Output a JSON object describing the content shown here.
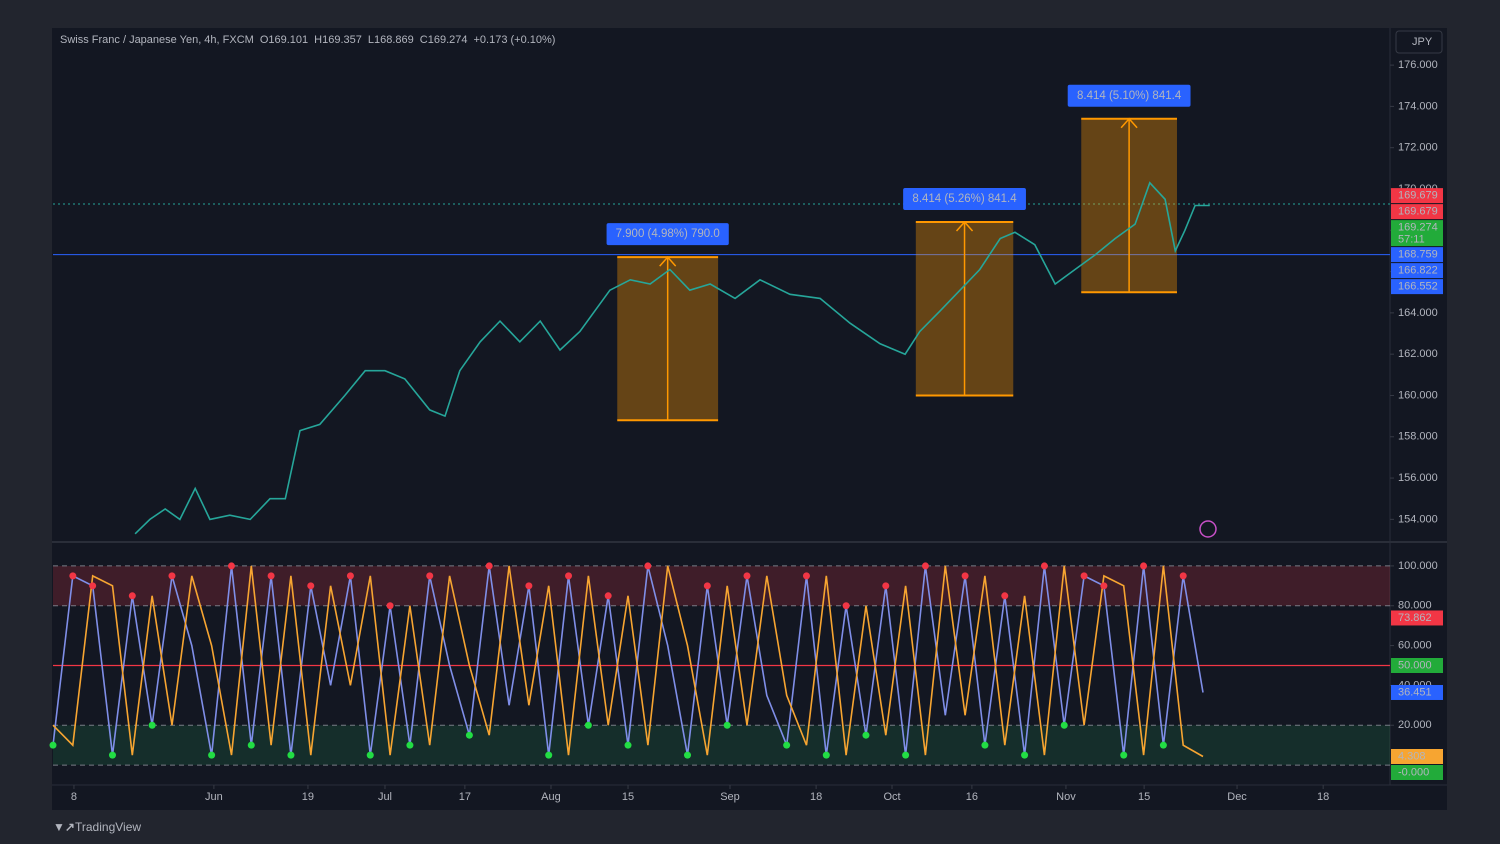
{
  "header": {
    "symbol": "Swiss Franc / Japanese Yen, 4h, FXCM",
    "open": "O169.101",
    "high": "H169.357",
    "low": "L168.869",
    "close": "C169.274",
    "change": "+0.173 (+0.10%)"
  },
  "currency": "JPY",
  "brand": "TradingView",
  "chart_data": [
    {
      "type": "line",
      "xlim": [
        4,
        240
      ],
      "ylim": [
        153,
        177.7
      ],
      "xticks": [
        {
          "value": 7.7,
          "label": "8"
        },
        {
          "value": 32.4,
          "label": "Jun"
        },
        {
          "value": 49,
          "label": "19"
        },
        {
          "value": 62.6,
          "label": "Jul"
        },
        {
          "value": 76.7,
          "label": "17"
        },
        {
          "value": 91.9,
          "label": "Aug"
        },
        {
          "value": 105.5,
          "label": "15"
        },
        {
          "value": 123.5,
          "label": "Sep"
        },
        {
          "value": 138.7,
          "label": "18"
        },
        {
          "value": 152.1,
          "label": "Oct"
        },
        {
          "value": 166.2,
          "label": "16"
        },
        {
          "value": 182.8,
          "label": "Nov"
        },
        {
          "value": 196.6,
          "label": "15"
        },
        {
          "value": 213,
          "label": "Dec"
        },
        {
          "value": 228.2,
          "label": "18"
        }
      ],
      "yticks": [
        {
          "value": 154,
          "label": "154.000"
        },
        {
          "value": 156,
          "label": "156.000"
        },
        {
          "value": 158,
          "label": "158.000"
        },
        {
          "value": 160,
          "label": "160.000"
        },
        {
          "value": 162,
          "label": "162.000"
        },
        {
          "value": 164,
          "label": "164.000"
        },
        {
          "value": 166,
          "label": "166.000"
        },
        {
          "value": 168,
          "label": "168.000"
        },
        {
          "value": 170,
          "label": "170.000"
        },
        {
          "value": 172,
          "label": "172.000"
        },
        {
          "value": 174,
          "label": "174.000"
        },
        {
          "value": 176,
          "label": "176.000"
        }
      ],
      "x": [
        18.5,
        21.1,
        23.8,
        26.4,
        29.1,
        31.7,
        35.2,
        38.8,
        42.3,
        45,
        47.6,
        51.1,
        55.5,
        59.1,
        62.6,
        66.1,
        70.5,
        73.2,
        75.8,
        79.4,
        82.9,
        86.4,
        90,
        93.5,
        97,
        102.3,
        105.9,
        109.4,
        112.9,
        116.4,
        120,
        124.4,
        128.8,
        134.1,
        139.4,
        144.7,
        150,
        154.4,
        157,
        160.6,
        164.1,
        167.6,
        171.2,
        173.8,
        177.3,
        180.9,
        184.4,
        187.9,
        191.5,
        195,
        197.6,
        200.3,
        202.1,
        203.8,
        205.6,
        208.2
      ],
      "series": [
        {
          "color": "#26a69a",
          "values": [
            153.3,
            154,
            154.5,
            154,
            155.5,
            154,
            154.2,
            154,
            155,
            155,
            158.3,
            158.6,
            160,
            161.2,
            161.2,
            160.8,
            159.3,
            159,
            161.2,
            162.6,
            163.6,
            162.6,
            163.6,
            162.2,
            163.1,
            165.1,
            165.6,
            165.4,
            166.1,
            165.1,
            165.4,
            164.7,
            165.6,
            164.9,
            164.7,
            163.5,
            162.5,
            162,
            163.1,
            164.1,
            165.1,
            166.1,
            167.6,
            167.9,
            167.3,
            165.4,
            166.1,
            166.8,
            167.6,
            168.3,
            170.3,
            169.5,
            167,
            168,
            169.2,
            169.2
          ]
        }
      ],
      "measures": [
        {
          "label": "7.900 (4.98%) 790.0",
          "x": [
            103.6,
            121.4
          ],
          "y": [
            158.8,
            166.7
          ]
        },
        {
          "label": "8.414 (5.26%) 841.4",
          "x": [
            156.3,
            173.5
          ],
          "y": [
            160,
            168.4
          ]
        },
        {
          "label": "8.414 (5.10%) 841.4",
          "x": [
            185.5,
            202.4
          ],
          "y": [
            165,
            173.4
          ]
        }
      ],
      "hlines": [
        {
          "value": 166.822,
          "color": "#2962ff",
          "dashed": false
        },
        {
          "value": 169.274,
          "color": "#26a69a",
          "dashed": true
        }
      ],
      "price_labels": [
        {
          "value": 169.679,
          "color": "#f23645"
        },
        {
          "value": 169.679,
          "color": "#f23645"
        },
        {
          "value": 169.274,
          "sub": "57:11",
          "color": "#22ab3a"
        },
        {
          "value": 168.759,
          "color": "#2962ff"
        },
        {
          "value": 166.822,
          "color": "#2962ff"
        },
        {
          "value": 166.552,
          "color": "#2962ff"
        }
      ]
    },
    {
      "type": "line",
      "xlim": [
        4,
        240
      ],
      "ylim": [
        -10,
        110.5
      ],
      "yticks": [
        {
          "value": 100,
          "label": "100.000"
        },
        {
          "value": 80,
          "label": "80.000"
        },
        {
          "value": 60,
          "label": "60.000"
        },
        {
          "value": 40,
          "label": "40.000"
        },
        {
          "value": 20,
          "label": "20.000"
        }
      ],
      "zones": [
        {
          "range": [
            80,
            100
          ],
          "color": "rgba(242,54,69,0.2)"
        },
        {
          "range": [
            0,
            20
          ],
          "color": "rgba(38,166,91,0.16)"
        }
      ],
      "midline": 50,
      "x": [
        4,
        7.5,
        11,
        14.5,
        18,
        21.5,
        25,
        28.5,
        32,
        35.5,
        39,
        42.5,
        46,
        49.5,
        53,
        56.5,
        60,
        63.5,
        67,
        70.5,
        74,
        77.5,
        81,
        84.5,
        88,
        91.5,
        95,
        98.5,
        102,
        105.5,
        109,
        112.5,
        116,
        119.5,
        123,
        126.5,
        130,
        133.5,
        137,
        140.5,
        144,
        147.5,
        151,
        154.5,
        158,
        161.5,
        165,
        168.5,
        172,
        175.5,
        179,
        182.5,
        186,
        189.5,
        193,
        196.5,
        200,
        203.5,
        207
      ],
      "series": [
        {
          "color": "#7f8ee8",
          "values": [
            10,
            95,
            90,
            5,
            85,
            20,
            95,
            60,
            5,
            100,
            10,
            95,
            5,
            90,
            40,
            95,
            5,
            80,
            10,
            95,
            50,
            15,
            100,
            30,
            90,
            5,
            95,
            20,
            85,
            10,
            100,
            60,
            5,
            90,
            20,
            95,
            35,
            10,
            95,
            5,
            80,
            15,
            90,
            5,
            100,
            25,
            95,
            10,
            85,
            5,
            100,
            20,
            95,
            90,
            5,
            100,
            10,
            95,
            36.451
          ]
        },
        {
          "color": "#f7a531",
          "values": [
            20,
            10,
            95,
            90,
            5,
            85,
            20,
            95,
            60,
            5,
            100,
            10,
            95,
            5,
            90,
            40,
            95,
            5,
            80,
            10,
            95,
            50,
            15,
            100,
            30,
            90,
            5,
            95,
            20,
            85,
            10,
            100,
            60,
            5,
            90,
            20,
            95,
            35,
            10,
            95,
            5,
            80,
            15,
            90,
            5,
            100,
            25,
            95,
            10,
            85,
            5,
            100,
            20,
            95,
            90,
            5,
            100,
            10,
            4.308
          ]
        }
      ],
      "value_labels": [
        {
          "value": 73.862,
          "color": "#f23645"
        },
        {
          "value": 50,
          "label": "50.000",
          "color": "#22ab3a"
        },
        {
          "value": 36.451,
          "color": "#2962ff"
        },
        {
          "value": 4.308,
          "color": "#f7a531"
        },
        {
          "value": 0,
          "label": "-0.000",
          "color": "#22ab3a"
        }
      ]
    }
  ]
}
